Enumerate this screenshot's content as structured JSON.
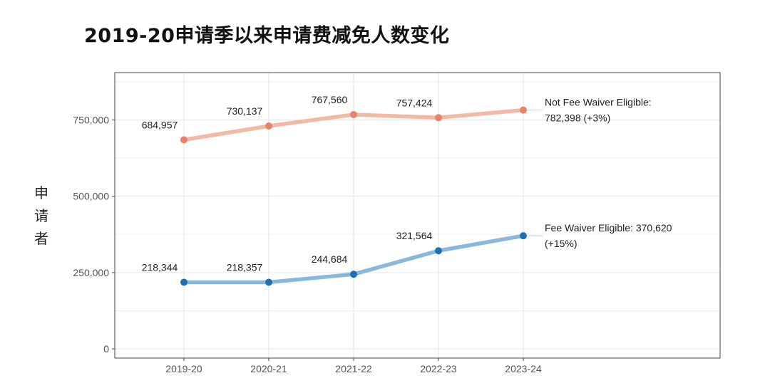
{
  "title": "2019-20申请季以来申请费减免人数变化",
  "chart_data": {
    "type": "line",
    "title": "2019-20申请季以来申请费减免人数变化",
    "xlabel": "",
    "ylabel": "申请者",
    "categories": [
      "2019-20",
      "2020-21",
      "2021-22",
      "2022-23",
      "2023-24"
    ],
    "ylim": [
      -30000,
      905000
    ],
    "yticks": [
      0,
      250000,
      500000,
      750000
    ],
    "ytick_labels": [
      "0",
      "250,000",
      "500,000",
      "750,000"
    ],
    "grid": true,
    "series": [
      {
        "name": "Not Fee Waiver Eligible",
        "color": "#f2b9a6",
        "point_color": "#e8836a",
        "values": [
          684957,
          730137,
          767560,
          757424,
          782398
        ],
        "labels": [
          "684,957",
          "730,137",
          "767,560",
          "757,424",
          ""
        ],
        "annotation": [
          "Not Fee Waiver Eligible:",
          "782,398 (+3%)"
        ]
      },
      {
        "name": "Fee Waiver Eligible",
        "color": "#8ab7dc",
        "point_color": "#1f6fb5",
        "values": [
          218344,
          218357,
          244684,
          321564,
          370620
        ],
        "labels": [
          "218,344",
          "218,357",
          "244,684",
          "321,564",
          ""
        ],
        "annotation": [
          "Fee Waiver Eligible: 370,620",
          "(+15%)"
        ]
      }
    ]
  }
}
